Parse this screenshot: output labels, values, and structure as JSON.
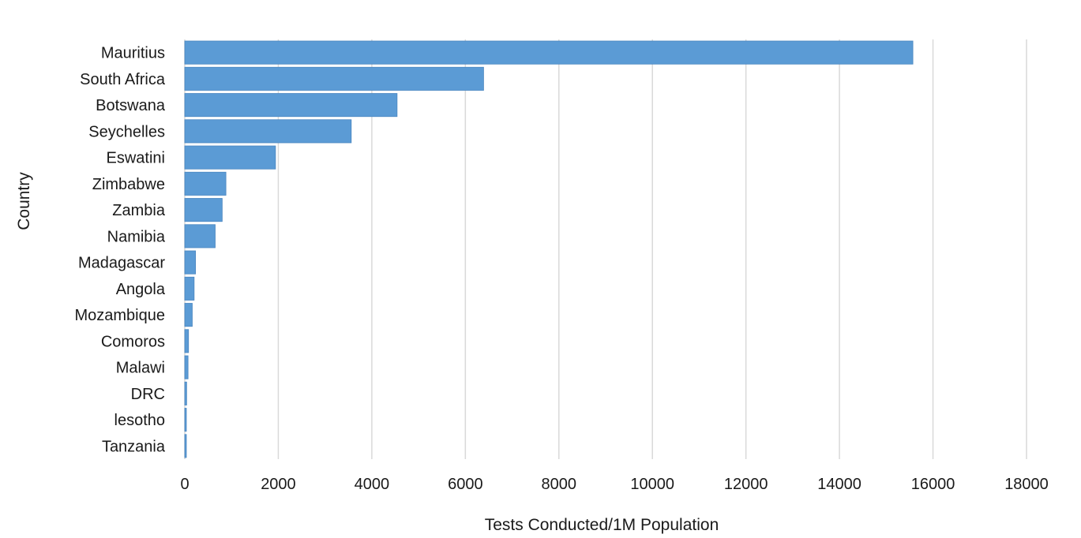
{
  "chart_data": {
    "type": "bar",
    "orientation": "horizontal",
    "categories": [
      "Mauritius",
      "South Africa",
      "Botswana",
      "Seychelles",
      "Eswatini",
      "Zimbabwe",
      "Zambia",
      "Namibia",
      "Madagascar",
      "Angola",
      "Mozambique",
      "Comoros",
      "Malawi",
      "DRC",
      "lesotho",
      "Tanzania"
    ],
    "values": [
      15570,
      6390,
      4540,
      3560,
      1940,
      880,
      800,
      650,
      230,
      200,
      160,
      80,
      70,
      40,
      30,
      20
    ],
    "xlabel": "Tests Conducted/1M Population",
    "ylabel": "Country",
    "xlim": [
      0,
      18000
    ],
    "xticks": [
      "0",
      "2000",
      "4000",
      "6000",
      "8000",
      "10000",
      "12000",
      "14000",
      "16000",
      "18000"
    ],
    "grid": "vertical",
    "legend": "none",
    "bar_color": "#5b9bd5",
    "gridline_color": "#d9d9d9"
  }
}
